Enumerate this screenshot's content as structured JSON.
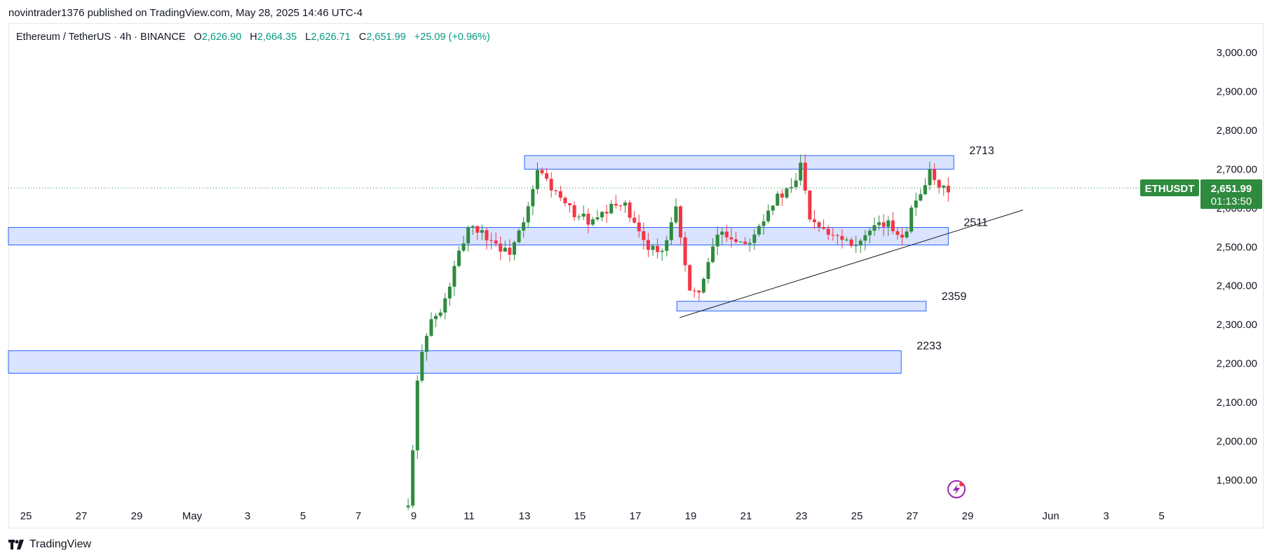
{
  "header": {
    "published_text": "novintrader1376 published on TradingView.com, May 28, 2025 14:46 UTC-4"
  },
  "legend": {
    "symbol": "Ethereum / TetherUS · 4h · BINANCE",
    "open_label": "O",
    "open": "2,626.90",
    "high_label": "H",
    "high": "2,664.35",
    "low_label": "L",
    "low": "2,626.71",
    "close_label": "C",
    "close": "2,651.99",
    "change": "+25.09 (+0.96%)"
  },
  "price_badge": {
    "ticker": "ETHUSDT",
    "price": "2,651.99",
    "countdown": "01:13:50",
    "color": "#2e8b3e"
  },
  "footer": {
    "brand": "TradingView"
  },
  "chart_data": {
    "type": "candlestick",
    "title": "Ethereum / TetherUS · 4h · BINANCE",
    "y_axis": {
      "ticks": [
        1900,
        2000,
        2100,
        2200,
        2300,
        2400,
        2500,
        2600,
        2700,
        2800,
        2900,
        3000
      ],
      "tick_labels": [
        "1,900.00",
        "2,000.00",
        "2,100.00",
        "2,200.00",
        "2,300.00",
        "2,400.00",
        "2,500.00",
        "2,600.00",
        "2,700.00",
        "2,800.00",
        "2,900.00",
        "3,000.00"
      ],
      "range": [
        1845,
        3040
      ]
    },
    "x_axis": {
      "labels": [
        "25",
        "27",
        "29",
        "May",
        "3",
        "5",
        "7",
        "9",
        "11",
        "13",
        "15",
        "17",
        "19",
        "21",
        "23",
        "25",
        "27",
        "29",
        "Jun",
        "3",
        "5"
      ],
      "range": [
        "2025-04-24",
        "2025-06-06"
      ]
    },
    "colors": {
      "up": "#26a69a",
      "up_body": "#2e8b3e",
      "down": "#f23645",
      "zone_fill": "#d3deff",
      "zone_border": "#2962ff"
    },
    "zones": [
      {
        "label": "2713",
        "low": 2700,
        "high": 2735,
        "from": "2025-05-13",
        "to": "2025-05-28.5"
      },
      {
        "label": "2511",
        "low": 2505,
        "high": 2550,
        "from": "2025-04-24",
        "to": "2025-05-28.3"
      },
      {
        "label": "2359",
        "low": 2335,
        "high": 2360,
        "from": "2025-05-18.5",
        "to": "2025-05-27.5"
      },
      {
        "label": "2233",
        "low": 2175,
        "high": 2233,
        "from": "2025-04-24",
        "to": "2025-05-26.6"
      }
    ],
    "trendline": {
      "from": {
        "date": "2025-05-18.6",
        "price": 2318
      },
      "to": {
        "date": "2025-05-31.0",
        "price": 2595
      }
    },
    "last_price_line": 2651.99,
    "series_keypoints": [
      {
        "date": "2025-05-08.8",
        "price": 1830
      },
      {
        "date": "2025-05-09.0",
        "price": 2000
      },
      {
        "date": "2025-05-09.2",
        "price": 2220
      },
      {
        "date": "2025-05-09.6",
        "price": 2310
      },
      {
        "date": "2025-05-10.0",
        "price": 2330
      },
      {
        "date": "2025-05-10.5",
        "price": 2450
      },
      {
        "date": "2025-05-11.0",
        "price": 2560
      },
      {
        "date": "2025-05-11.8",
        "price": 2520
      },
      {
        "date": "2025-05-12.4",
        "price": 2480
      },
      {
        "date": "2025-05-13.0",
        "price": 2560
      },
      {
        "date": "2025-05-13.5",
        "price": 2700
      },
      {
        "date": "2025-05-14.5",
        "price": 2600
      },
      {
        "date": "2025-05-15.5",
        "price": 2560
      },
      {
        "date": "2025-05-16.5",
        "price": 2620
      },
      {
        "date": "2025-05-17.2",
        "price": 2520
      },
      {
        "date": "2025-05-18.0",
        "price": 2480
      },
      {
        "date": "2025-05-18.5",
        "price": 2600
      },
      {
        "date": "2025-05-19.0",
        "price": 2360
      },
      {
        "date": "2025-05-19.5",
        "price": 2420
      },
      {
        "date": "2025-05-20.0",
        "price": 2540
      },
      {
        "date": "2025-05-21.0",
        "price": 2510
      },
      {
        "date": "2025-05-22.0",
        "price": 2620
      },
      {
        "date": "2025-05-22.7",
        "price": 2650
      },
      {
        "date": "2025-05-23.0",
        "price": 2720
      },
      {
        "date": "2025-05-23.3",
        "price": 2580
      },
      {
        "date": "2025-05-24.0",
        "price": 2540
      },
      {
        "date": "2025-05-25.0",
        "price": 2510
      },
      {
        "date": "2025-05-26.0",
        "price": 2560
      },
      {
        "date": "2025-05-26.7",
        "price": 2530
      },
      {
        "date": "2025-05-27.0",
        "price": 2600
      },
      {
        "date": "2025-05-27.6",
        "price": 2690
      },
      {
        "date": "2025-05-28.0",
        "price": 2640
      },
      {
        "date": "2025-05-28.4",
        "price": 2652
      }
    ]
  }
}
